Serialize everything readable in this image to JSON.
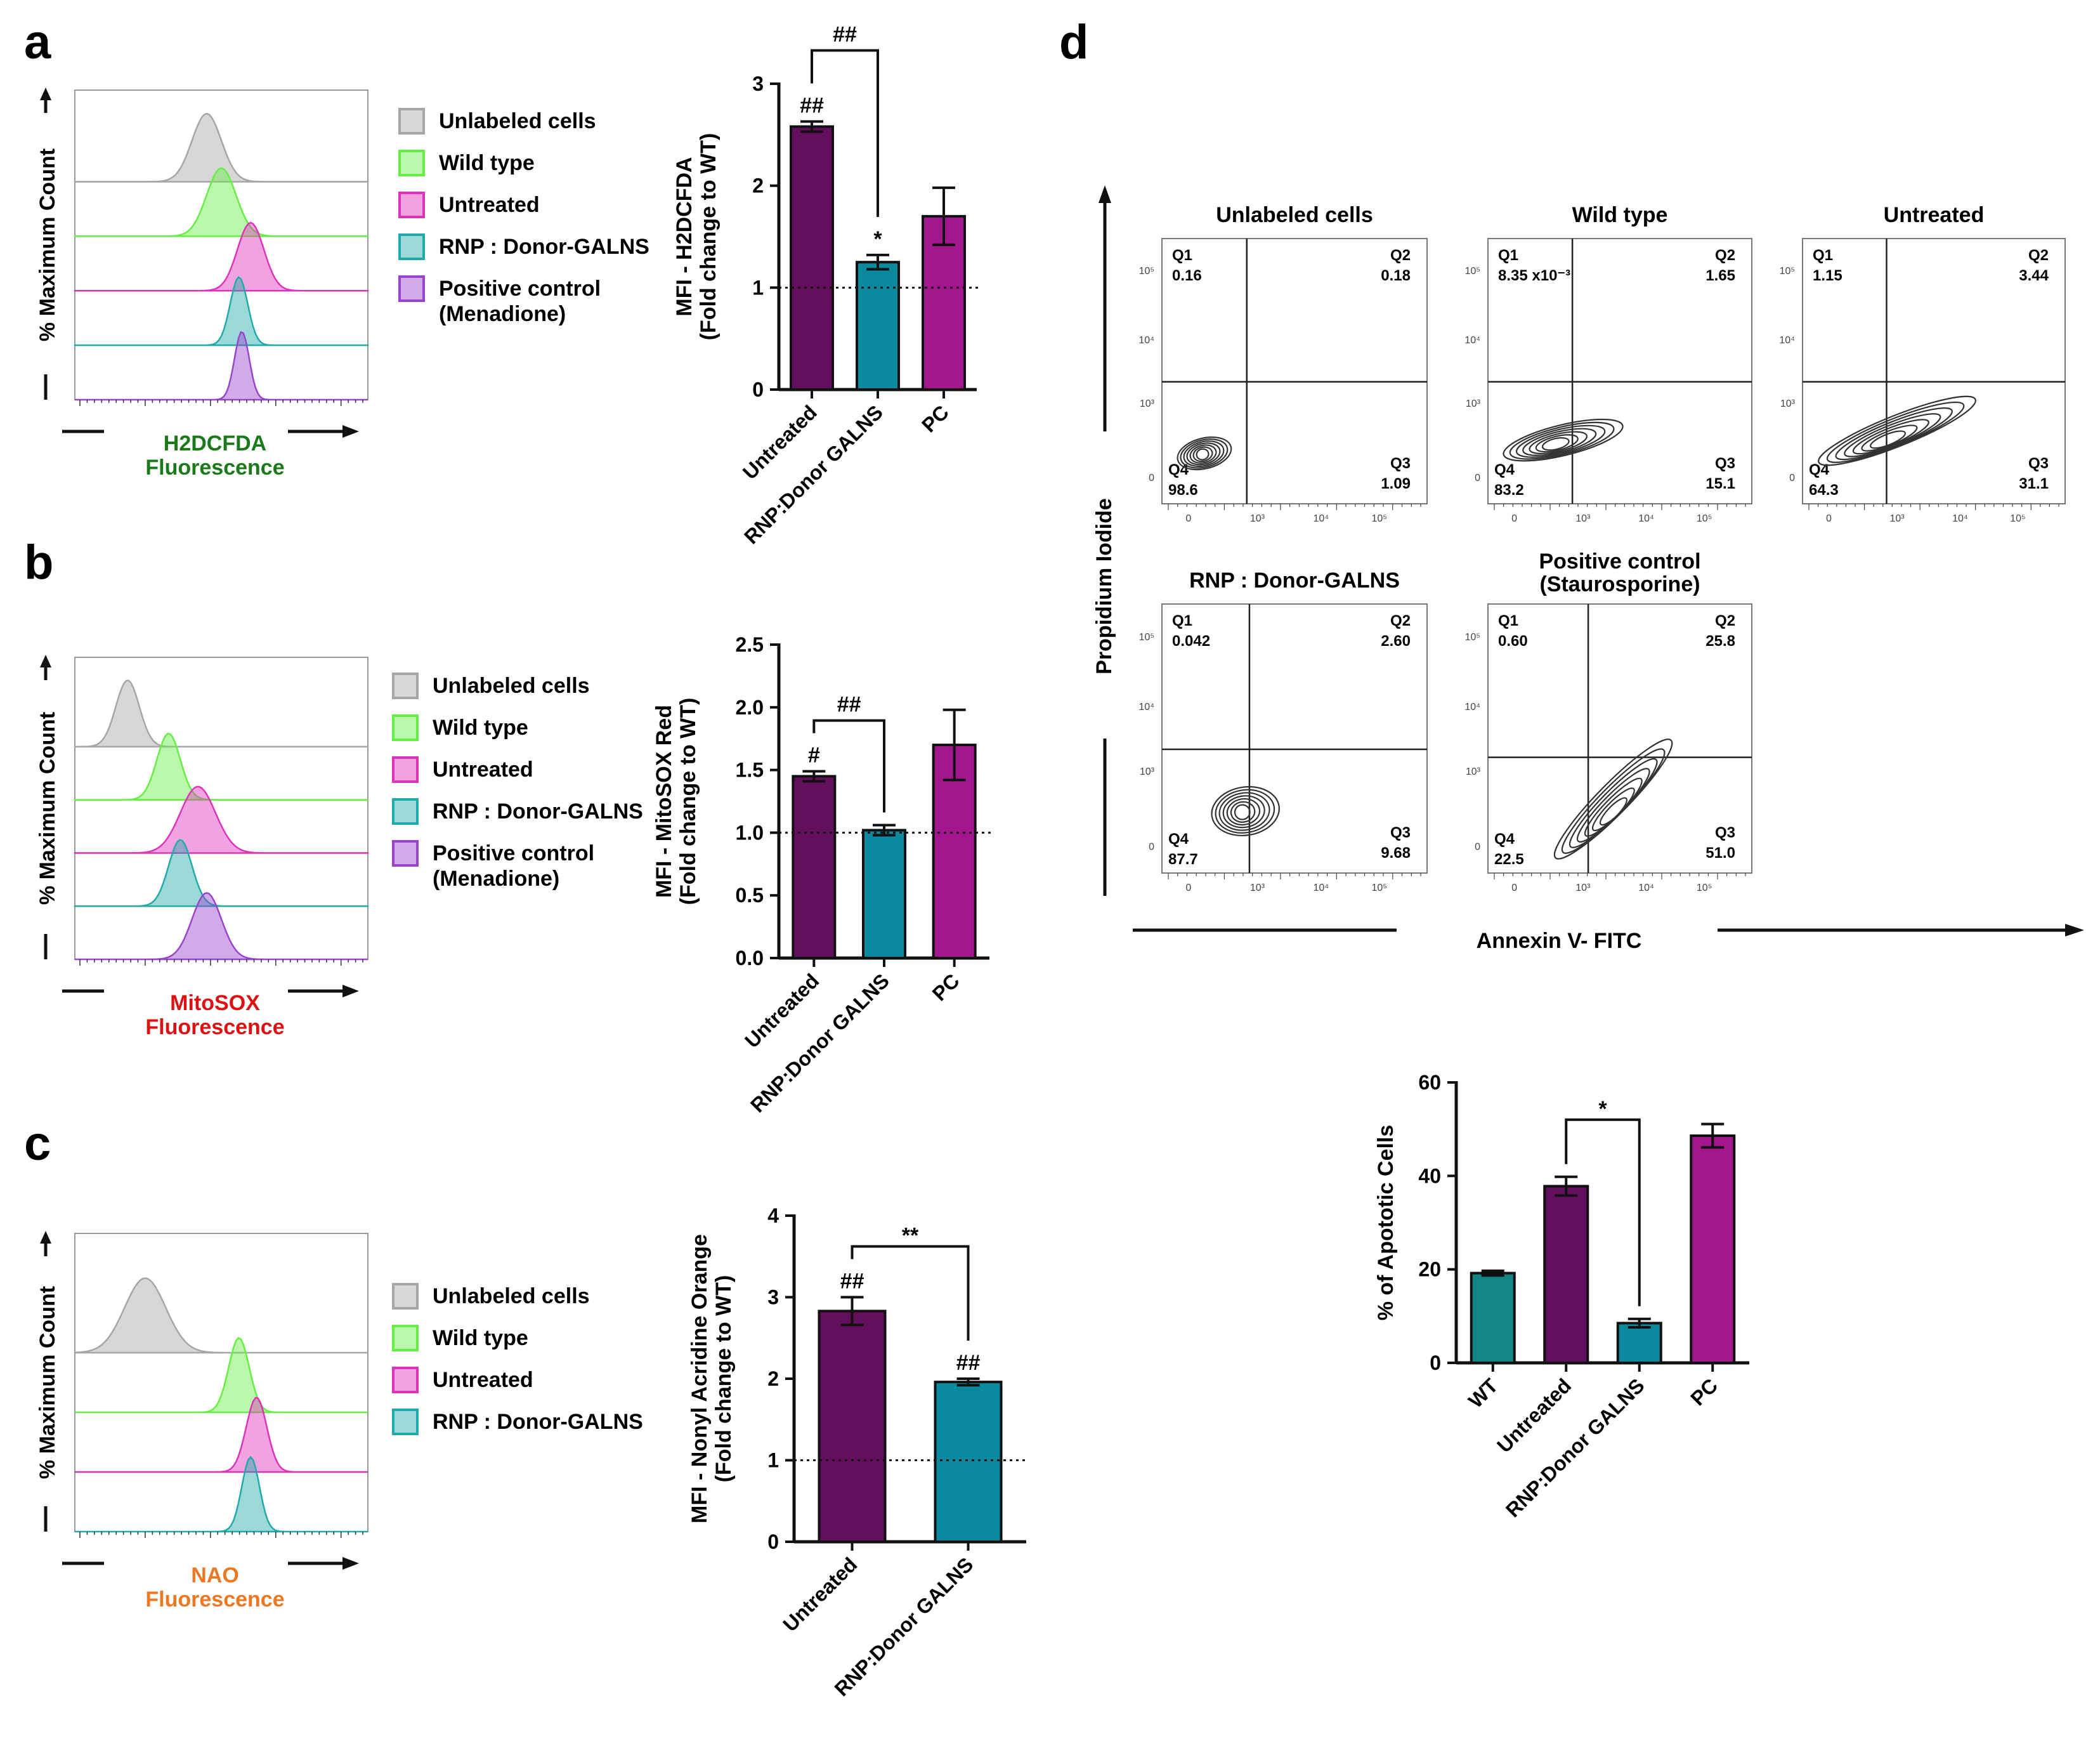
{
  "panels": {
    "a": "a",
    "b": "b",
    "c": "c",
    "d": "d"
  },
  "colors": {
    "unlabeled": "#a6a6a6",
    "wild_type": "#66ee44",
    "untreated": "#dd33bb",
    "rnp": "#22aaaa",
    "positive_control": "#9944cc",
    "bar_untreated": "#640f5e",
    "bar_rnp": "#0a8a9e",
    "bar_pc": "#a3168e",
    "bar_wt": "#148585"
  },
  "histograms": {
    "a": {
      "ylabel": "% Maximum Count",
      "xlabel_line1": "H2DCFDA",
      "xlabel_line2": "Fluorescence",
      "xlabel_color": "#1a7a1a",
      "legend": [
        "Unlabeled cells",
        "Wild type",
        "Untreated",
        "RNP : Donor-GALNS",
        "Positive control",
        "(Menadione)"
      ],
      "peaks": [
        {
          "pos": 0.45,
          "width": 0.05
        },
        {
          "pos": 0.5,
          "width": 0.05
        },
        {
          "pos": 0.6,
          "width": 0.045
        },
        {
          "pos": 0.56,
          "width": 0.03
        },
        {
          "pos": 0.57,
          "width": 0.025
        }
      ]
    },
    "b": {
      "ylabel": "% Maximum Count",
      "xlabel_line1": "MitoSOX",
      "xlabel_line2": "Fluorescence",
      "xlabel_color": "#dd1111",
      "legend": [
        "Unlabeled cells",
        "Wild type",
        "Untreated",
        "RNP : Donor-GALNS",
        "Positive control",
        "(Menadione)"
      ],
      "peaks": [
        {
          "pos": 0.18,
          "width": 0.04
        },
        {
          "pos": 0.32,
          "width": 0.04
        },
        {
          "pos": 0.42,
          "width": 0.06
        },
        {
          "pos": 0.36,
          "width": 0.04
        },
        {
          "pos": 0.45,
          "width": 0.05
        }
      ]
    },
    "c": {
      "ylabel": "% Maximum Count",
      "xlabel_line1": "NAO",
      "xlabel_line2": "Fluorescence",
      "xlabel_color": "#ee7722",
      "legend": [
        "Unlabeled cells",
        "Wild type",
        "Untreated",
        "RNP : Donor-GALNS"
      ],
      "peaks": [
        {
          "pos": 0.24,
          "width": 0.07
        },
        {
          "pos": 0.56,
          "width": 0.035
        },
        {
          "pos": 0.62,
          "width": 0.035
        },
        {
          "pos": 0.6,
          "width": 0.03
        }
      ]
    }
  },
  "chart_data": [
    {
      "id": "a",
      "type": "bar",
      "title": "",
      "ylabel_line1": "MFI - H2DCFDA",
      "ylabel_line2": "(Fold change to WT)",
      "categories": [
        "Untreated",
        "RNP:Donor GALNS",
        "PC"
      ],
      "values": [
        2.58,
        1.25,
        1.7
      ],
      "errors": [
        0.05,
        0.07,
        0.28
      ],
      "ylim": [
        0,
        3
      ],
      "yticks": [
        "0",
        "1",
        "2",
        "3"
      ],
      "ytick_values": [
        0,
        1,
        2,
        3
      ],
      "reference_line": 1.0,
      "annotations": [
        {
          "bar": 0,
          "text": "##"
        },
        {
          "bar": 1,
          "text": "*"
        }
      ],
      "bracket": {
        "from": 0,
        "to": 1,
        "text": "##"
      }
    },
    {
      "id": "b",
      "type": "bar",
      "title": "",
      "ylabel_line1": "MFI - MitoSOX Red",
      "ylabel_line2": "(Fold change to WT)",
      "categories": [
        "Untreated",
        "RNP:Donor GALNS",
        "PC"
      ],
      "values": [
        1.45,
        1.02,
        1.7
      ],
      "errors": [
        0.04,
        0.04,
        0.28
      ],
      "ylim": [
        0,
        2.5
      ],
      "yticks": [
        "0.0",
        "0.5",
        "1.0",
        "1.5",
        "2.0",
        "2.5"
      ],
      "ytick_values": [
        0,
        0.5,
        1,
        1.5,
        2,
        2.5
      ],
      "reference_line": 1.0,
      "annotations": [
        {
          "bar": 0,
          "text": "#"
        }
      ],
      "bracket": {
        "from": 0,
        "to": 1,
        "text": "##"
      }
    },
    {
      "id": "c",
      "type": "bar",
      "title": "",
      "ylabel_line1": "MFI - Nonyl Acridine Orange",
      "ylabel_line2": "(Fold change to WT)",
      "categories": [
        "Untreated",
        "RNP:Donor GALNS"
      ],
      "values": [
        2.83,
        1.96
      ],
      "errors": [
        0.17,
        0.04
      ],
      "ylim": [
        0,
        4
      ],
      "yticks": [
        "0",
        "1",
        "2",
        "3",
        "4"
      ],
      "ytick_values": [
        0,
        1,
        2,
        3,
        4
      ],
      "reference_line": 1.0,
      "annotations": [
        {
          "bar": 0,
          "text": "##"
        },
        {
          "bar": 1,
          "text": "##"
        }
      ],
      "bracket": {
        "from": 0,
        "to": 1,
        "text": "**"
      }
    },
    {
      "id": "d",
      "type": "bar",
      "title": "",
      "ylabel_line1": "% of Apototic Cells",
      "ylabel_line2": "",
      "categories": [
        "WT",
        "Untreated",
        "RNP:Donor GALNS",
        "PC"
      ],
      "values": [
        19.2,
        37.8,
        8.5,
        48.6
      ],
      "errors": [
        0.5,
        2.0,
        0.9,
        2.5
      ],
      "ylim": [
        0,
        60
      ],
      "yticks": [
        "0",
        "20",
        "40",
        "60"
      ],
      "ytick_values": [
        0,
        20,
        40,
        60
      ],
      "reference_line": null,
      "annotations": [],
      "bracket": {
        "from": 1,
        "to": 2,
        "text": "*"
      }
    }
  ],
  "flow": {
    "ylabel": "Propidium Iodide",
    "xlabel": "Annexin V- FITC",
    "tick_labels": {
      "zero": "0",
      "e3": "10³",
      "e4": "10⁴",
      "e5": "10⁵"
    },
    "plots": [
      {
        "title": "Unlabeled cells",
        "title2": "",
        "q1l": "Q1",
        "q1": "0.16",
        "q2l": "Q2",
        "q2": "0.18",
        "q3l": "Q3",
        "q3": "1.09",
        "q4l": "Q4",
        "q4": "98.6"
      },
      {
        "title": "Wild type",
        "title2": "",
        "q1l": "Q1",
        "q1": "8.35 x10⁻³",
        "q2l": "Q2",
        "q2": "1.65",
        "q3l": "Q3",
        "q3": "15.1",
        "q4l": "Q4",
        "q4": "83.2"
      },
      {
        "title": "Untreated",
        "title2": "",
        "q1l": "Q1",
        "q1": "1.15",
        "q2l": "Q2",
        "q2": "3.44",
        "q3l": "Q3",
        "q3": "31.1",
        "q4l": "Q4",
        "q4": "64.3"
      },
      {
        "title": "RNP : Donor-GALNS",
        "title2": "",
        "q1l": "Q1",
        "q1": "0.042",
        "q2l": "Q2",
        "q2": "2.60",
        "q3l": "Q3",
        "q3": "9.68",
        "q4l": "Q4",
        "q4": "87.7"
      },
      {
        "title": "Positive control",
        "title2": "(Staurosporine)",
        "q1l": "Q1",
        "q1": "0.60",
        "q2l": "Q2",
        "q2": "25.8",
        "q3l": "Q3",
        "q3": "51.0",
        "q4l": "Q4",
        "q4": "22.5"
      }
    ]
  }
}
